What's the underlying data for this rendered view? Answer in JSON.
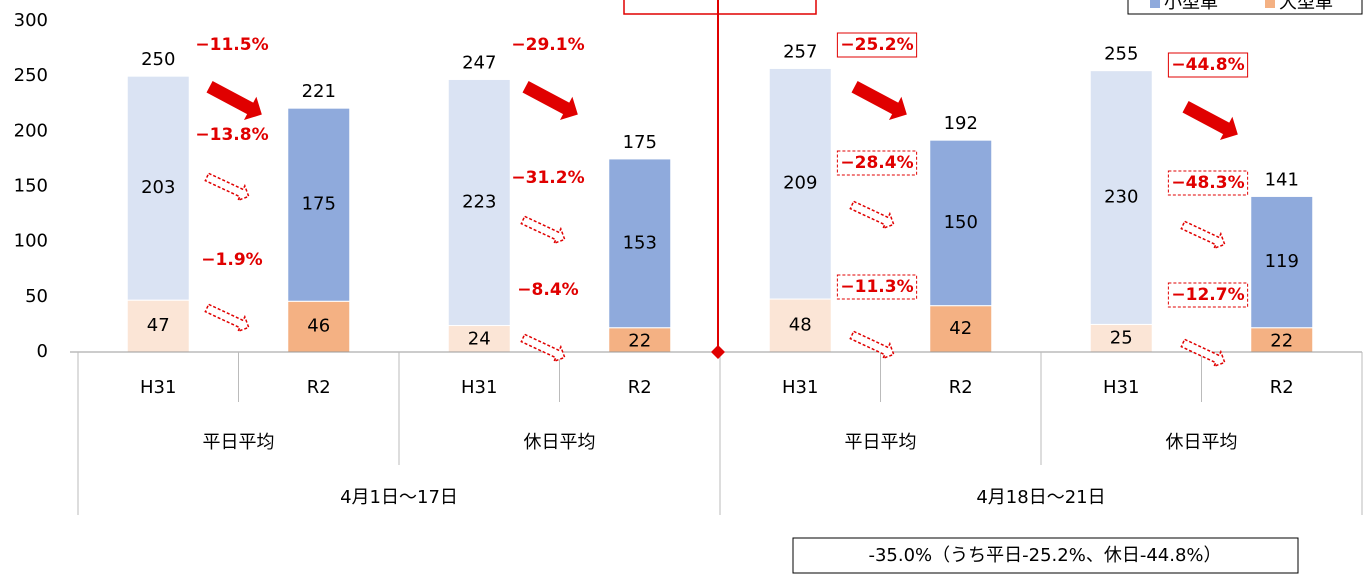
{
  "chart_data": {
    "type": "bar",
    "stacked": true,
    "categories": [
      "H31",
      "R2",
      "H31",
      "R2",
      "H31",
      "R2",
      "H31",
      "R2"
    ],
    "groups": [
      "平日平均",
      "休日平均",
      "平日平均",
      "休日平均"
    ],
    "periods": [
      "4月1日〜17日",
      "4月18日〜21日"
    ],
    "series": [
      {
        "name": "大型車",
        "colors": [
          "#fbe5d6",
          "#f4b183",
          "#fbe5d6",
          "#f4b183",
          "#fbe5d6",
          "#f4b183",
          "#fbe5d6",
          "#f4b183"
        ],
        "values": [
          47,
          46,
          24,
          22,
          48,
          42,
          25,
          22
        ]
      },
      {
        "name": "小型車",
        "colors": [
          "#dae3f3",
          "#8faadc",
          "#dae3f3",
          "#8faadc",
          "#dae3f3",
          "#8faadc",
          "#dae3f3",
          "#8faadc"
        ],
        "values": [
          203,
          175,
          223,
          153,
          209,
          150,
          230,
          119
        ]
      }
    ],
    "totals": [
      250,
      221,
      247,
      175,
      257,
      192,
      255,
      141
    ],
    "ylim": [
      0,
      300
    ],
    "yticks": [
      0,
      50,
      100,
      150,
      200,
      250,
      300
    ],
    "total_change": [
      "−11.5%",
      "−29.1%",
      "−25.2%",
      "−44.8%"
    ],
    "small_change": [
      "−13.8%",
      "−31.2%",
      "−28.4%",
      "−48.3%"
    ],
    "large_change": [
      "−1.9%",
      "−8.4%",
      "−11.3%",
      "−12.7%"
    ],
    "note": "-35.0%（うち平日-25.2%、休日-44.8%）"
  }
}
